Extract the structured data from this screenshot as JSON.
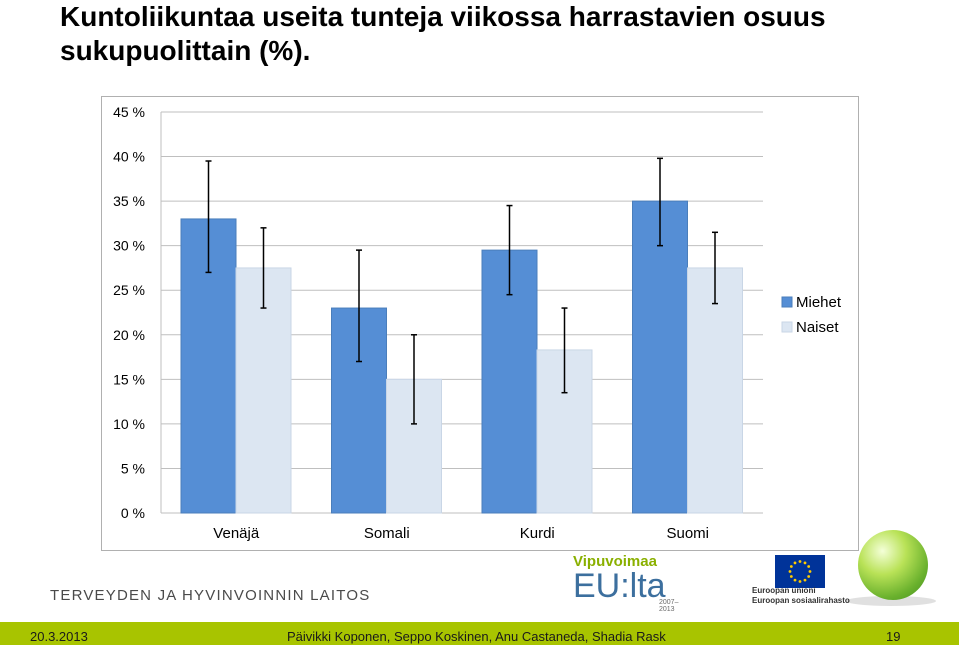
{
  "title": "Kuntoliikuntaa useita tunteja viikossa harrastavien osuus sukupuolittain (%).",
  "chart_data": {
    "type": "bar",
    "categories": [
      "Venäjä",
      "Somali",
      "Kurdi",
      "Suomi"
    ],
    "series": [
      {
        "name": "Miehet",
        "values": [
          33,
          23,
          29.5,
          35
        ],
        "error_low": [
          27,
          17,
          24.5,
          30
        ],
        "error_high": [
          39.5,
          29.5,
          34.5,
          39.8
        ],
        "color": "#558ed5"
      },
      {
        "name": "Naiset",
        "values": [
          27.5,
          15,
          18.3,
          27.5
        ],
        "error_low": [
          23,
          10,
          13.5,
          23.5
        ],
        "error_high": [
          32,
          20,
          23,
          31.5
        ],
        "color": "#dce6f2"
      }
    ],
    "yticks": [
      "0 %",
      "5 %",
      "10 %",
      "15 %",
      "20 %",
      "25 %",
      "30 %",
      "35 %",
      "40 %",
      "45 %"
    ],
    "ylim": [
      0,
      45
    ],
    "grid": true,
    "legend_position": "right"
  },
  "logos": {
    "thl": "TERVEYDEN JA HYVINVOINNIN LAITOS",
    "vipuvoimaa": "Vipuvoimaa",
    "eu_lta": "EU:lta",
    "years": "2007–2013",
    "eu_union": "Euroopan unioni",
    "esr": "Euroopan sosiaalirahasto"
  },
  "footer": {
    "date": "20.3.2013",
    "authors": "Päivikki Koponen, Seppo Koskinen, Anu Castaneda, Shadia Rask",
    "page": "19"
  }
}
